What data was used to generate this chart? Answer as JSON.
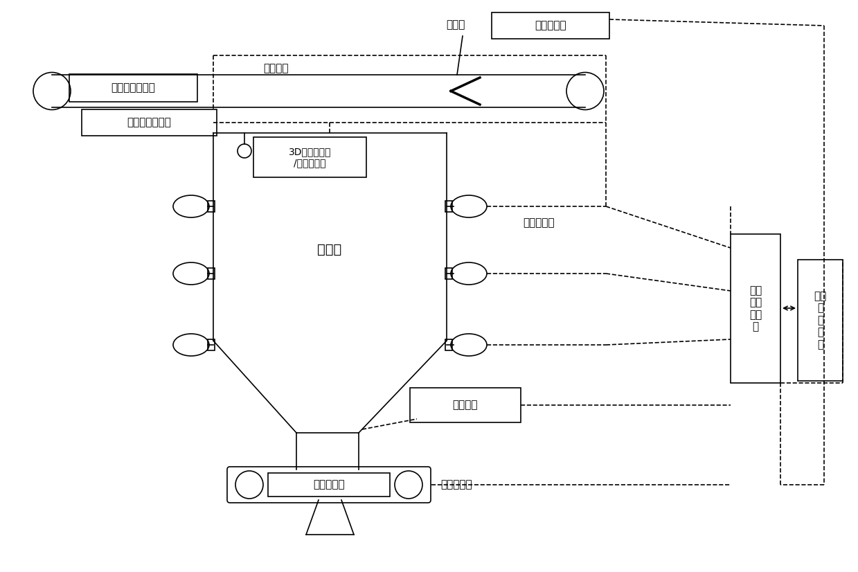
{
  "bg_color": "#ffffff",
  "text_color": "#000000",
  "labels": {
    "liecoqi": "犁煤器",
    "weizhichuanganqi": "位置传感器",
    "ruludianzipidaicheng": "入炉电子皮带秤",
    "pidaichengsuduchuanganqi": "皮带速度传感器",
    "shumei_pidai": "输煤皮带",
    "3d_scanner": "3D料位扫描仪\n/雷达料位计",
    "yuanmeicang": "原煤仓",
    "yasuo_kongyipao": "压缩空气炮",
    "xinhaoshouji_kongzhixiang": "信号\n收集\n控制\n筱",
    "yuanfang_kongzhizhuangzhi": "远方\n控\n制\n装\n置",
    "baojing_zhuangzhi": "报警装置",
    "dianzipidaicheng": "电子皮带秤",
    "chengzhong_geimeiji": "称重给煤机"
  }
}
